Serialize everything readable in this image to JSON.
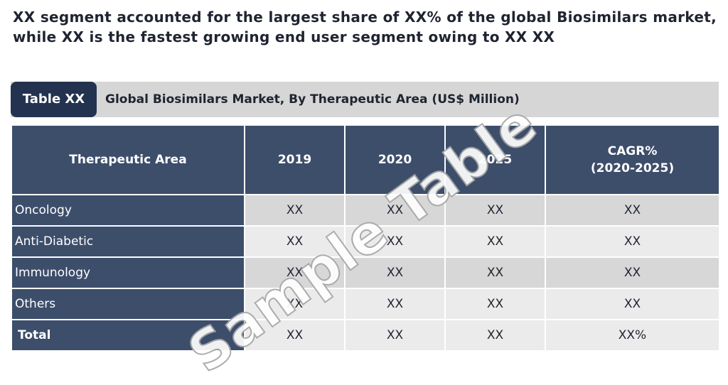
{
  "headline": "XX segment accounted for the largest share of XX% of the global Biosimilars market, while XX is the fastest growing end user segment owing to XX XX",
  "caption": {
    "tag": "Table XX",
    "title": "Global Biosimilars Market, By Therapeutic Area (US$ Million)"
  },
  "table": {
    "headers": {
      "area": "Therapeutic Area",
      "y2019": "2019",
      "y2020": "2020",
      "y2025": "2025",
      "cagr_line1": "CAGR%",
      "cagr_line2": "(2020-2025)"
    },
    "rows": [
      {
        "label": "Oncology",
        "v2019": "XX",
        "v2020": "XX",
        "v2025": "XX",
        "cagr": "XX"
      },
      {
        "label": "Anti-Diabetic",
        "v2019": "XX",
        "v2020": "XX",
        "v2025": "XX",
        "cagr": "XX"
      },
      {
        "label": "Immunology",
        "v2019": "XX",
        "v2020": "XX",
        "v2025": "XX",
        "cagr": "XX"
      },
      {
        "label": "Others",
        "v2019": "XX",
        "v2020": "XX",
        "v2025": "XX",
        "cagr": "XX"
      },
      {
        "label": "Total",
        "v2019": "XX",
        "v2020": "XX",
        "v2025": "XX",
        "cagr": "XX%"
      }
    ]
  },
  "watermark": "Sample Table",
  "colors": {
    "header_navy": "#3d4e6b",
    "tag_navy": "#23334f",
    "caption_gray": "#d6d6d6",
    "row_dark": "#d7d7d7",
    "row_light": "#ebebeb"
  }
}
